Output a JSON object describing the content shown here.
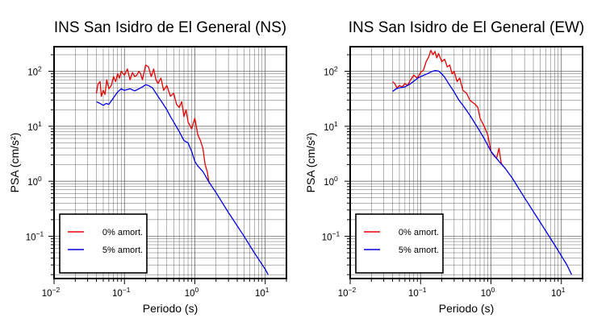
{
  "chart_data": [
    {
      "type": "line",
      "title": "INS San Isidro de El General (NS)",
      "xlabel": "Periodo (s)",
      "ylabel": "PSA (cm/s²)",
      "xscale": "log",
      "yscale": "log",
      "xlim": [
        0.01,
        20
      ],
      "ylim": [
        0.017,
        280
      ],
      "x_ticks": [
        {
          "base": "10",
          "exp": "−2"
        },
        {
          "base": "10",
          "exp": "−1"
        },
        {
          "base": "10",
          "exp": "0"
        },
        {
          "base": "10",
          "exp": "1"
        }
      ],
      "y_ticks": [
        {
          "base": "10",
          "exp": "−1"
        },
        {
          "base": "10",
          "exp": "0"
        },
        {
          "base": "10",
          "exp": "1"
        },
        {
          "base": "10",
          "exp": "2"
        }
      ],
      "grid": true,
      "legend_position": "bottom-left",
      "series": [
        {
          "name": "0% amort.",
          "color": "#e60000",
          "points": [
            [
              0.04,
              40
            ],
            [
              0.042,
              58
            ],
            [
              0.045,
              65
            ],
            [
              0.047,
              35
            ],
            [
              0.05,
              45
            ],
            [
              0.053,
              38
            ],
            [
              0.056,
              70
            ],
            [
              0.06,
              48
            ],
            [
              0.065,
              55
            ],
            [
              0.07,
              80
            ],
            [
              0.075,
              65
            ],
            [
              0.08,
              90
            ],
            [
              0.085,
              75
            ],
            [
              0.09,
              100
            ],
            [
              0.1,
              85
            ],
            [
              0.11,
              110
            ],
            [
              0.12,
              70
            ],
            [
              0.13,
              95
            ],
            [
              0.14,
              80
            ],
            [
              0.15,
              85
            ],
            [
              0.16,
              100
            ],
            [
              0.17,
              90
            ],
            [
              0.18,
              70
            ],
            [
              0.2,
              130
            ],
            [
              0.22,
              120
            ],
            [
              0.24,
              80
            ],
            [
              0.26,
              110
            ],
            [
              0.28,
              70
            ],
            [
              0.3,
              60
            ],
            [
              0.33,
              75
            ],
            [
              0.36,
              45
            ],
            [
              0.4,
              55
            ],
            [
              0.45,
              35
            ],
            [
              0.5,
              40
            ],
            [
              0.55,
              25
            ],
            [
              0.6,
              22
            ],
            [
              0.65,
              28
            ],
            [
              0.7,
              15
            ],
            [
              0.75,
              20
            ],
            [
              0.8,
              12
            ],
            [
              0.9,
              9
            ],
            [
              1.0,
              14
            ],
            [
              1.1,
              7
            ],
            [
              1.2,
              5.5
            ],
            [
              1.3,
              4
            ],
            [
              1.4,
              2
            ],
            [
              1.5,
              1.5
            ],
            [
              1.6,
              0.9
            ]
          ]
        },
        {
          "name": "5% amort.",
          "color": "#0000e6",
          "points": [
            [
              0.04,
              28
            ],
            [
              0.045,
              26
            ],
            [
              0.05,
              24
            ],
            [
              0.055,
              26
            ],
            [
              0.06,
              25
            ],
            [
              0.07,
              33
            ],
            [
              0.08,
              42
            ],
            [
              0.09,
              48
            ],
            [
              0.1,
              45
            ],
            [
              0.12,
              48
            ],
            [
              0.14,
              44
            ],
            [
              0.16,
              48
            ],
            [
              0.18,
              52
            ],
            [
              0.2,
              57
            ],
            [
              0.22,
              55
            ],
            [
              0.25,
              50
            ],
            [
              0.3,
              35
            ],
            [
              0.35,
              26
            ],
            [
              0.4,
              20
            ],
            [
              0.45,
              15
            ],
            [
              0.5,
              12
            ],
            [
              0.6,
              8
            ],
            [
              0.7,
              5.5
            ],
            [
              0.8,
              5
            ],
            [
              0.9,
              3.5
            ],
            [
              1.0,
              2.3
            ],
            [
              1.1,
              1.9
            ],
            [
              1.3,
              1.5
            ],
            [
              1.6,
              0.95
            ],
            [
              2,
              0.62
            ],
            [
              3,
              0.27
            ],
            [
              5,
              0.1
            ],
            [
              7,
              0.05
            ],
            [
              10,
              0.025
            ],
            [
              11,
              0.02
            ]
          ]
        }
      ]
    },
    {
      "type": "line",
      "title": "INS San Isidro de El General (EW)",
      "xlabel": "Periodo (s)",
      "ylabel": "PSA (cm/s²)",
      "xscale": "log",
      "yscale": "log",
      "xlim": [
        0.01,
        20
      ],
      "ylim": [
        0.017,
        280
      ],
      "x_ticks": [
        {
          "base": "10",
          "exp": "−2"
        },
        {
          "base": "10",
          "exp": "−1"
        },
        {
          "base": "10",
          "exp": "0"
        },
        {
          "base": "10",
          "exp": "1"
        }
      ],
      "y_ticks": [
        {
          "base": "10",
          "exp": "−1"
        },
        {
          "base": "10",
          "exp": "0"
        },
        {
          "base": "10",
          "exp": "1"
        },
        {
          "base": "10",
          "exp": "2"
        }
      ],
      "grid": true,
      "legend_position": "bottom-left",
      "series": [
        {
          "name": "0% amort.",
          "color": "#e60000",
          "points": [
            [
              0.04,
              65
            ],
            [
              0.043,
              60
            ],
            [
              0.046,
              50
            ],
            [
              0.05,
              55
            ],
            [
              0.055,
              52
            ],
            [
              0.06,
              60
            ],
            [
              0.065,
              55
            ],
            [
              0.07,
              65
            ],
            [
              0.08,
              85
            ],
            [
              0.09,
              75
            ],
            [
              0.1,
              95
            ],
            [
              0.11,
              105
            ],
            [
              0.12,
              150
            ],
            [
              0.13,
              180
            ],
            [
              0.14,
              240
            ],
            [
              0.15,
              200
            ],
            [
              0.16,
              230
            ],
            [
              0.17,
              175
            ],
            [
              0.18,
              210
            ],
            [
              0.2,
              150
            ],
            [
              0.22,
              165
            ],
            [
              0.24,
              120
            ],
            [
              0.26,
              130
            ],
            [
              0.28,
              90
            ],
            [
              0.3,
              100
            ],
            [
              0.33,
              65
            ],
            [
              0.36,
              75
            ],
            [
              0.4,
              45
            ],
            [
              0.45,
              40
            ],
            [
              0.5,
              30
            ],
            [
              0.55,
              27
            ],
            [
              0.6,
              25
            ],
            [
              0.65,
              22
            ],
            [
              0.7,
              14
            ],
            [
              0.8,
              10
            ],
            [
              0.9,
              7
            ],
            [
              1.0,
              3.5
            ],
            [
              1.1,
              2.9
            ],
            [
              1.2,
              2.6
            ],
            [
              1.3,
              4
            ],
            [
              1.4,
              2.1
            ],
            [
              1.6,
              1.7
            ]
          ]
        },
        {
          "name": "5% amort.",
          "color": "#0000e6",
          "points": [
            [
              0.04,
              43
            ],
            [
              0.045,
              48
            ],
            [
              0.05,
              50
            ],
            [
              0.06,
              52
            ],
            [
              0.07,
              58
            ],
            [
              0.08,
              66
            ],
            [
              0.09,
              74
            ],
            [
              0.1,
              80
            ],
            [
              0.12,
              88
            ],
            [
              0.14,
              97
            ],
            [
              0.16,
              103
            ],
            [
              0.18,
              101
            ],
            [
              0.2,
              90
            ],
            [
              0.22,
              78
            ],
            [
              0.25,
              60
            ],
            [
              0.3,
              42
            ],
            [
              0.35,
              30
            ],
            [
              0.4,
              24
            ],
            [
              0.5,
              16
            ],
            [
              0.6,
              11
            ],
            [
              0.7,
              8
            ],
            [
              0.8,
              6
            ],
            [
              0.9,
              4.5
            ],
            [
              1.0,
              3.5
            ],
            [
              1.1,
              3
            ],
            [
              1.3,
              2.3
            ],
            [
              1.6,
              1.7
            ],
            [
              2,
              1.15
            ],
            [
              3,
              0.5
            ],
            [
              5,
              0.18
            ],
            [
              8,
              0.07
            ],
            [
              12,
              0.03
            ],
            [
              14,
              0.02
            ]
          ]
        }
      ]
    }
  ]
}
